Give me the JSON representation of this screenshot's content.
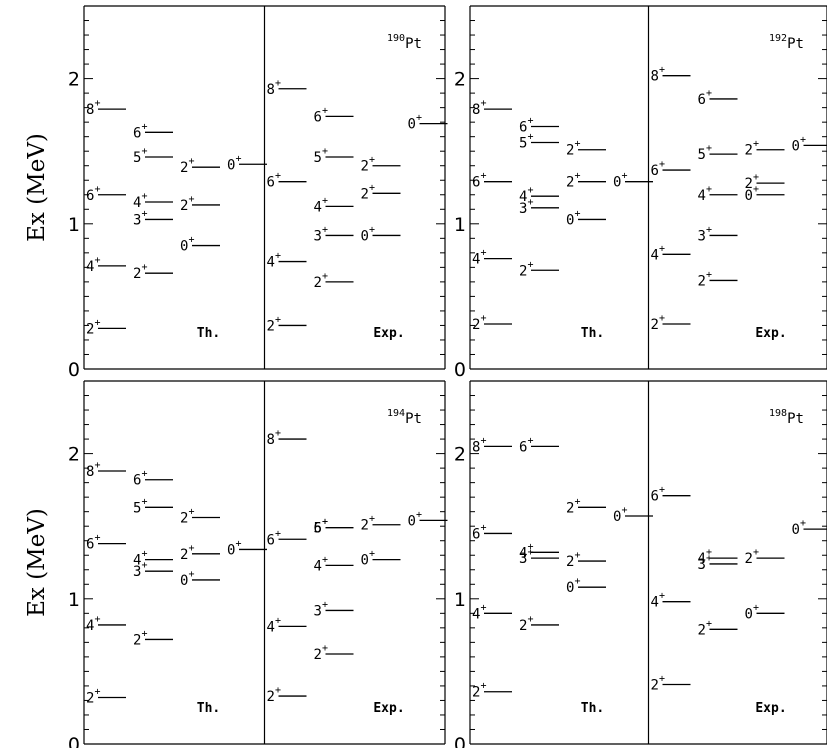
{
  "chart_data": [
    {
      "type": "level-scheme",
      "nucleus": "190Pt",
      "mass": "190",
      "element": "Pt",
      "ylabel": "Ex (MeV)",
      "yticks": [
        0,
        1,
        2
      ],
      "ylim": [
        0,
        2.5
      ],
      "sections": [
        {
          "name": "Th.",
          "columns": [
            {
              "levels": [
                {
                  "J": "2",
                  "E": 0.28
                },
                {
                  "J": "4",
                  "E": 0.71
                },
                {
                  "J": "6",
                  "E": 1.2
                },
                {
                  "J": "8",
                  "E": 1.79
                }
              ]
            },
            {
              "levels": [
                {
                  "J": "2",
                  "E": 0.66
                },
                {
                  "J": "3",
                  "E": 1.03
                },
                {
                  "J": "4",
                  "E": 1.15
                },
                {
                  "J": "5",
                  "E": 1.46
                },
                {
                  "J": "6",
                  "E": 1.63
                }
              ]
            },
            {
              "levels": [
                {
                  "J": "0",
                  "E": 0.85
                },
                {
                  "J": "2",
                  "E": 1.13
                },
                {
                  "J": "2",
                  "E": 1.39
                }
              ]
            },
            {
              "levels": [
                {
                  "J": "0",
                  "E": 1.41
                }
              ]
            }
          ]
        },
        {
          "name": "Exp.",
          "columns": [
            {
              "levels": [
                {
                  "J": "2",
                  "E": 0.3
                },
                {
                  "J": "4",
                  "E": 0.74
                },
                {
                  "J": "6",
                  "E": 1.29
                },
                {
                  "J": "8",
                  "E": 1.93
                }
              ]
            },
            {
              "levels": [
                {
                  "J": "2",
                  "E": 0.6
                },
                {
                  "J": "3",
                  "E": 0.92
                },
                {
                  "J": "4",
                  "E": 1.12
                },
                {
                  "J": "5",
                  "E": 1.46
                },
                {
                  "J": "6",
                  "E": 1.74
                }
              ]
            },
            {
              "levels": [
                {
                  "J": "0",
                  "E": 0.92
                },
                {
                  "J": "2",
                  "E": 1.21
                },
                {
                  "J": "2",
                  "E": 1.4
                }
              ]
            },
            {
              "levels": [
                {
                  "J": "0",
                  "E": 1.69
                }
              ]
            }
          ]
        }
      ]
    },
    {
      "type": "level-scheme",
      "nucleus": "192Pt",
      "mass": "192",
      "element": "Pt",
      "ylabel": "",
      "yticks": [
        0,
        1,
        2
      ],
      "ylim": [
        0,
        2.5
      ],
      "sections": [
        {
          "name": "Th.",
          "columns": [
            {
              "levels": [
                {
                  "J": "2",
                  "E": 0.31
                },
                {
                  "J": "4",
                  "E": 0.76
                },
                {
                  "J": "6",
                  "E": 1.29
                },
                {
                  "J": "8",
                  "E": 1.79
                }
              ]
            },
            {
              "levels": [
                {
                  "J": "2",
                  "E": 0.68
                },
                {
                  "J": "3",
                  "E": 1.11
                },
                {
                  "J": "4",
                  "E": 1.19
                },
                {
                  "J": "5",
                  "E": 1.56
                },
                {
                  "J": "6",
                  "E": 1.67
                }
              ]
            },
            {
              "levels": [
                {
                  "J": "0",
                  "E": 1.03
                },
                {
                  "J": "2",
                  "E": 1.29
                },
                {
                  "J": "2",
                  "E": 1.51
                }
              ]
            },
            {
              "levels": [
                {
                  "J": "0",
                  "E": 1.29
                }
              ]
            }
          ]
        },
        {
          "name": "Exp.",
          "columns": [
            {
              "levels": [
                {
                  "J": "2",
                  "E": 0.31
                },
                {
                  "J": "4",
                  "E": 0.79
                },
                {
                  "J": "6",
                  "E": 1.37
                },
                {
                  "J": "8",
                  "E": 2.02
                }
              ]
            },
            {
              "levels": [
                {
                  "J": "2",
                  "E": 0.61
                },
                {
                  "J": "3",
                  "E": 0.92
                },
                {
                  "J": "4",
                  "E": 1.2
                },
                {
                  "J": "5",
                  "E": 1.48
                },
                {
                  "J": "6",
                  "E": 1.86
                }
              ]
            },
            {
              "levels": [
                {
                  "J": "0",
                  "E": 1.2
                },
                {
                  "J": "2",
                  "E": 1.28
                },
                {
                  "J": "2",
                  "E": 1.51
                }
              ]
            },
            {
              "levels": [
                {
                  "J": "0",
                  "E": 1.54
                }
              ]
            }
          ]
        }
      ]
    },
    {
      "type": "level-scheme",
      "nucleus": "194Pt",
      "mass": "194",
      "element": "Pt",
      "ylabel": "Ex (MeV)",
      "yticks": [
        0,
        1,
        2
      ],
      "ylim": [
        0,
        2.5
      ],
      "sections": [
        {
          "name": "Th.",
          "columns": [
            {
              "levels": [
                {
                  "J": "2",
                  "E": 0.32
                },
                {
                  "J": "4",
                  "E": 0.82
                },
                {
                  "J": "6",
                  "E": 1.38
                },
                {
                  "J": "8",
                  "E": 1.88
                }
              ]
            },
            {
              "levels": [
                {
                  "J": "2",
                  "E": 0.72
                },
                {
                  "J": "3",
                  "E": 1.19
                },
                {
                  "J": "4",
                  "E": 1.27
                },
                {
                  "J": "5",
                  "E": 1.63
                },
                {
                  "J": "6",
                  "E": 1.82
                }
              ]
            },
            {
              "levels": [
                {
                  "J": "0",
                  "E": 1.13
                },
                {
                  "J": "2",
                  "E": 1.31
                },
                {
                  "J": "2",
                  "E": 1.56
                }
              ]
            },
            {
              "levels": [
                {
                  "J": "0",
                  "E": 1.34
                }
              ]
            }
          ]
        },
        {
          "name": "Exp.",
          "columns": [
            {
              "levels": [
                {
                  "J": "2",
                  "E": 0.33
                },
                {
                  "J": "4",
                  "E": 0.81
                },
                {
                  "J": "6",
                  "E": 1.41
                },
                {
                  "J": "8",
                  "E": 2.1
                }
              ]
            },
            {
              "levels": [
                {
                  "J": "2",
                  "E": 0.62
                },
                {
                  "J": "3",
                  "E": 0.92
                },
                {
                  "J": "4",
                  "E": 1.23
                },
                {
                  "J": "5",
                  "E": 1.49
                },
                {
                  "J": "6",
                  "E": 1.49
                }
              ]
            },
            {
              "levels": [
                {
                  "J": "0",
                  "E": 1.27
                },
                {
                  "J": "2",
                  "E": 1.51
                }
              ]
            },
            {
              "levels": [
                {
                  "J": "0",
                  "E": 1.54
                }
              ]
            }
          ]
        }
      ]
    },
    {
      "type": "level-scheme",
      "nucleus": "198Pt",
      "mass": "198",
      "element": "Pt",
      "ylabel": "",
      "yticks": [
        0,
        1,
        2
      ],
      "ylim": [
        0,
        2.5
      ],
      "sections": [
        {
          "name": "Th.",
          "columns": [
            {
              "levels": [
                {
                  "J": "2",
                  "E": 0.36
                },
                {
                  "J": "4",
                  "E": 0.9
                },
                {
                  "J": "6",
                  "E": 1.45
                },
                {
                  "J": "8",
                  "E": 2.05
                }
              ]
            },
            {
              "levels": [
                {
                  "J": "2",
                  "E": 0.82
                },
                {
                  "J": "3",
                  "E": 1.28
                },
                {
                  "J": "4",
                  "E": 1.32
                },
                {
                  "J": "6",
                  "E": 2.05
                }
              ]
            },
            {
              "levels": [
                {
                  "J": "0",
                  "E": 1.08
                },
                {
                  "J": "2",
                  "E": 1.26
                },
                {
                  "J": "2",
                  "E": 1.63
                }
              ]
            },
            {
              "levels": [
                {
                  "J": "0",
                  "E": 1.57
                }
              ]
            }
          ]
        },
        {
          "name": "Exp.",
          "columns": [
            {
              "levels": [
                {
                  "J": "2",
                  "E": 0.41
                },
                {
                  "J": "4",
                  "E": 0.98
                },
                {
                  "J": "6",
                  "E": 1.71
                }
              ]
            },
            {
              "levels": [
                {
                  "J": "2",
                  "E": 0.79
                },
                {
                  "J": "3",
                  "E": 1.24
                },
                {
                  "J": "4",
                  "E": 1.28
                }
              ]
            },
            {
              "levels": [
                {
                  "J": "0",
                  "E": 0.9
                },
                {
                  "J": "2",
                  "E": 1.28
                }
              ]
            },
            {
              "levels": [
                {
                  "J": "0",
                  "E": 1.48
                }
              ]
            }
          ]
        }
      ]
    }
  ]
}
